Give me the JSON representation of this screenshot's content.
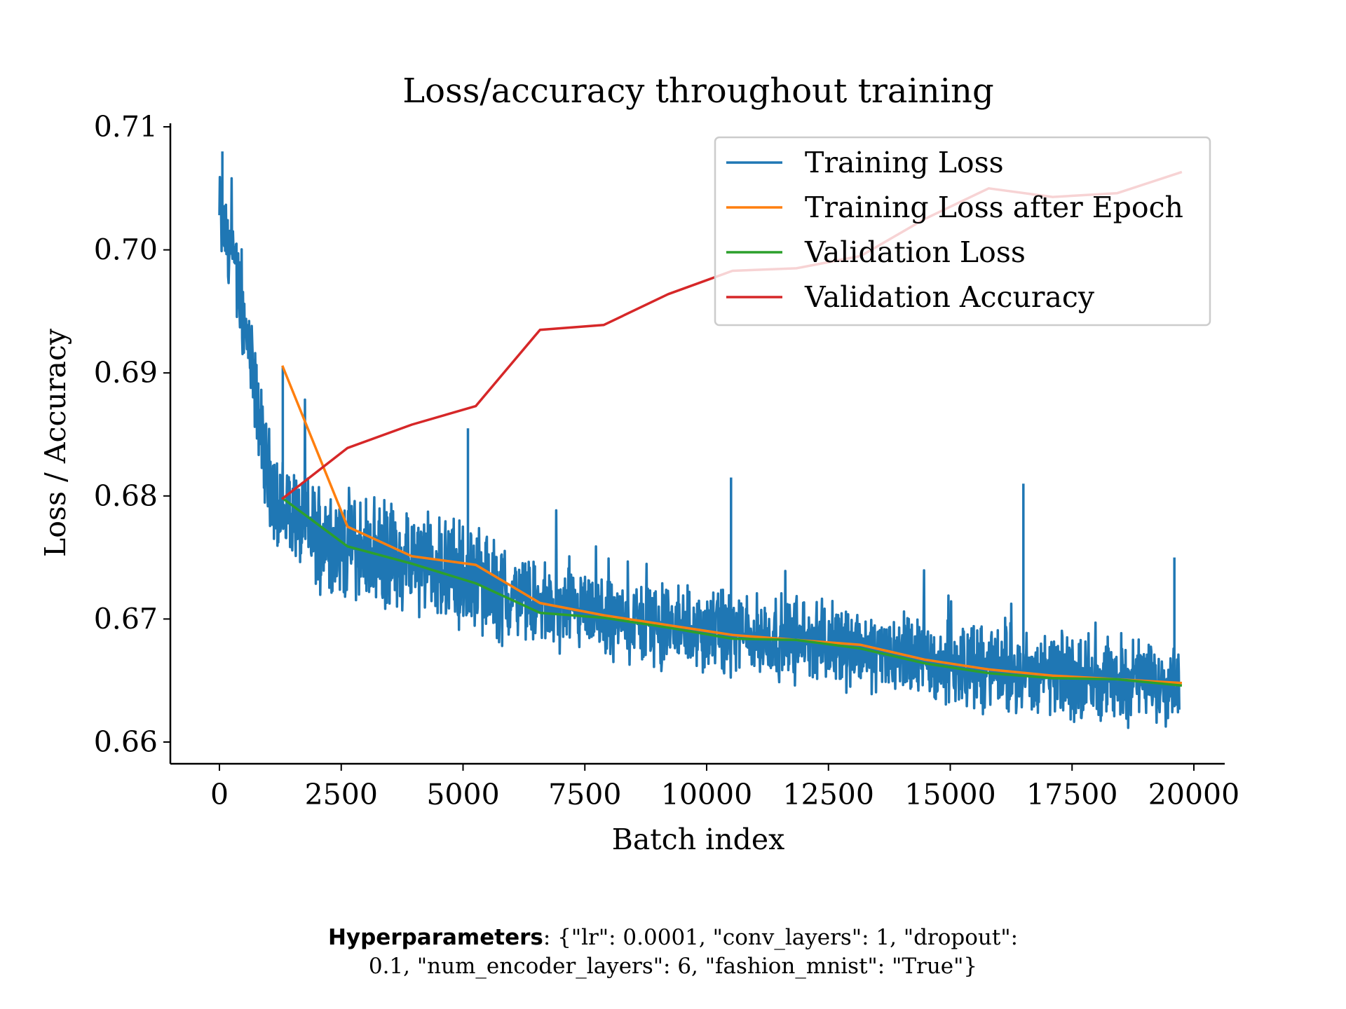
{
  "chart_data": {
    "type": "line",
    "title": "Loss/accuracy throughout training",
    "xlabel": "Batch index",
    "ylabel": "Loss / Accuracy",
    "xlim": [
      -1000,
      20700
    ],
    "ylim": [
      0.658,
      0.711
    ],
    "xticks": [
      0,
      2500,
      5000,
      7500,
      10000,
      12500,
      15000,
      17500,
      20000
    ],
    "yticks": [
      0.66,
      0.67,
      0.68,
      0.69,
      0.7,
      0.71
    ],
    "xtick_labels": [
      "0",
      "2500",
      "5000",
      "7500",
      "10000",
      "12500",
      "15000",
      "17500",
      "20000"
    ],
    "ytick_labels": [
      "0.66",
      "0.67",
      "0.68",
      "0.69",
      "0.70",
      "0.71"
    ],
    "grid": false,
    "legend_position": "top-right",
    "series": [
      {
        "name": "Training Loss",
        "color": "#1f77b4",
        "x_range": [
          0,
          19700
        ],
        "mean_points": [
          [
            0,
            0.703
          ],
          [
            300,
            0.699
          ],
          [
            600,
            0.692
          ],
          [
            900,
            0.684
          ],
          [
            1200,
            0.679
          ],
          [
            2000,
            0.677
          ],
          [
            3000,
            0.6755
          ],
          [
            4000,
            0.6745
          ],
          [
            5000,
            0.6735
          ],
          [
            6000,
            0.6718
          ],
          [
            7000,
            0.6705
          ],
          [
            8000,
            0.67
          ],
          [
            9000,
            0.6695
          ],
          [
            10000,
            0.669
          ],
          [
            11000,
            0.6686
          ],
          [
            12000,
            0.6683
          ],
          [
            13000,
            0.6678
          ],
          [
            14000,
            0.667
          ],
          [
            15000,
            0.6663
          ],
          [
            16000,
            0.6658
          ],
          [
            17000,
            0.6655
          ],
          [
            18000,
            0.6652
          ],
          [
            19000,
            0.665
          ],
          [
            19700,
            0.6648
          ]
        ],
        "notable_peaks": [
          [
            60,
            0.708
          ],
          [
            1300,
            0.6905
          ],
          [
            5100,
            0.6855
          ],
          [
            10500,
            0.6815
          ],
          [
            16500,
            0.681
          ],
          [
            19600,
            0.675
          ]
        ]
      },
      {
        "name": "Training Loss after Epoch",
        "color": "#ff7f0e",
        "x": [
          1300,
          2630,
          3950,
          5260,
          6580,
          7890,
          9210,
          10530,
          11840,
          13160,
          14470,
          15790,
          17100,
          18420,
          19730
        ],
        "y": [
          0.6905,
          0.6775,
          0.6751,
          0.6744,
          0.6713,
          0.6703,
          0.6695,
          0.6687,
          0.6683,
          0.6679,
          0.6667,
          0.6659,
          0.6654,
          0.6651,
          0.6648
        ]
      },
      {
        "name": "Validation Loss",
        "color": "#2ca02c",
        "x": [
          1300,
          2630,
          3950,
          5260,
          6580,
          7890,
          9210,
          10530,
          11840,
          13160,
          14470,
          15790,
          17100,
          18420,
          19730
        ],
        "y": [
          0.6798,
          0.6759,
          0.6745,
          0.6729,
          0.6705,
          0.6701,
          0.6693,
          0.6684,
          0.6683,
          0.6676,
          0.6664,
          0.6656,
          0.6652,
          0.6651,
          0.6646
        ]
      },
      {
        "name": "Validation Accuracy",
        "color": "#d62728",
        "x": [
          1300,
          2630,
          3950,
          5260,
          6580,
          7890,
          9210,
          10530,
          11840,
          13160,
          14470,
          15790,
          17100,
          18420,
          19730
        ],
        "y": [
          0.6798,
          0.6839,
          0.6858,
          0.6873,
          0.6935,
          0.6939,
          0.6964,
          0.6983,
          0.6985,
          0.6995,
          0.7025,
          0.705,
          0.7043,
          0.7046,
          0.7063
        ]
      }
    ]
  },
  "footer": {
    "label": "Hyperparameters",
    "line1": ": {\"lr\": 0.0001, \"conv_layers\": 1, \"dropout\":",
    "line2": "0.1, \"num_encoder_layers\": 6, \"fashion_mnist\": \"True\"}"
  }
}
